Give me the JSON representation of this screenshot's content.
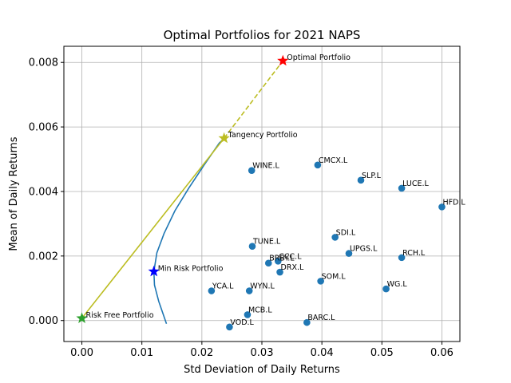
{
  "chart_data": {
    "type": "scatter",
    "title": "Optimal Portfolios for 2021 NAPS",
    "xlabel": "Std Deviation of Daily Returns",
    "ylabel": "Mean of Daily Returns",
    "xlim": [
      -0.003,
      0.063
    ],
    "ylim": [
      -0.00065,
      0.0085
    ],
    "xticks": [
      0.0,
      0.01,
      0.02,
      0.03,
      0.04,
      0.05,
      0.06
    ],
    "xtick_labels": [
      "0.00",
      "0.01",
      "0.02",
      "0.03",
      "0.04",
      "0.05",
      "0.06"
    ],
    "yticks": [
      0.0,
      0.002,
      0.004,
      0.006,
      0.008
    ],
    "ytick_labels": [
      "0.000",
      "0.002",
      "0.004",
      "0.006",
      "0.008"
    ],
    "grid": true,
    "colors": {
      "stocks": "#1f77b4",
      "frontier": "#1f77b4",
      "cal": "#bcbd22",
      "optimal": "#ff0000",
      "tangency": "#bcbd22",
      "min_risk": "#0000ff",
      "risk_free": "#2ca02c"
    },
    "stocks": [
      {
        "name": "CMCX.L",
        "x": 0.0393,
        "y": 0.00482
      },
      {
        "name": "SLP.L",
        "x": 0.0465,
        "y": 0.00435
      },
      {
        "name": "LUCE.L",
        "x": 0.0533,
        "y": 0.0041
      },
      {
        "name": "HFD.L",
        "x": 0.06,
        "y": 0.00352
      },
      {
        "name": "WINE.L",
        "x": 0.0283,
        "y": 0.00465
      },
      {
        "name": "SDI.L",
        "x": 0.0422,
        "y": 0.00258
      },
      {
        "name": "UPGS.L",
        "x": 0.0445,
        "y": 0.00208
      },
      {
        "name": "RCH.L",
        "x": 0.0533,
        "y": 0.00195
      },
      {
        "name": "TUNE.L",
        "x": 0.0284,
        "y": 0.0023
      },
      {
        "name": "CCC.L",
        "x": 0.0327,
        "y": 0.00184
      },
      {
        "name": "BRBY.L",
        "x": 0.0311,
        "y": 0.00178
      },
      {
        "name": "DRX.L",
        "x": 0.033,
        "y": 0.0015
      },
      {
        "name": "SOM.L",
        "x": 0.0398,
        "y": 0.00122
      },
      {
        "name": "WG.L",
        "x": 0.0507,
        "y": 0.00098
      },
      {
        "name": "YCA.L",
        "x": 0.0216,
        "y": 0.00092
      },
      {
        "name": "WYN.L",
        "x": 0.0279,
        "y": 0.00092
      },
      {
        "name": "MCB.L",
        "x": 0.0276,
        "y": 0.00018
      },
      {
        "name": "VOD.L",
        "x": 0.0246,
        "y": -0.0002
      },
      {
        "name": "BARC.L",
        "x": 0.0375,
        "y": -6e-05
      }
    ],
    "special_points": [
      {
        "name": "Optimal Portfolio",
        "x": 0.0335,
        "y": 0.00805,
        "marker": "star",
        "color_key": "optimal"
      },
      {
        "name": "Tangency Portfolio",
        "x": 0.0237,
        "y": 0.00565,
        "marker": "star",
        "color_key": "tangency"
      },
      {
        "name": "Min Risk Portfolio",
        "x": 0.012,
        "y": 0.00152,
        "marker": "star",
        "color_key": "min_risk"
      },
      {
        "name": "Risk Free Portfolio",
        "x": 0.0,
        "y": 7e-05,
        "marker": "star",
        "color_key": "risk_free"
      }
    ],
    "frontier": {
      "x": [
        0.0141,
        0.0128,
        0.0121,
        0.012,
        0.0125,
        0.0137,
        0.0155,
        0.0178,
        0.0203,
        0.0229,
        0.0238
      ],
      "y": [
        -0.0001,
        0.0006,
        0.0011,
        0.00152,
        0.0021,
        0.0027,
        0.0034,
        0.0041,
        0.0048,
        0.0055,
        0.00565
      ]
    },
    "cal_solid": {
      "x": [
        0.0,
        0.0237
      ],
      "y": [
        7e-05,
        0.00565
      ]
    },
    "cal_dashed": {
      "x": [
        0.0237,
        0.0335
      ],
      "y": [
        0.00565,
        0.00805
      ]
    }
  }
}
